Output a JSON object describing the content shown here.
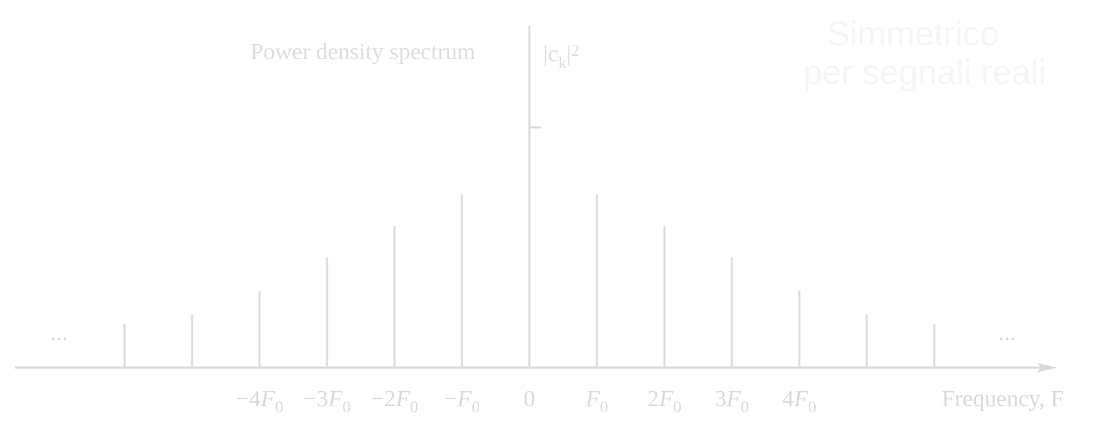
{
  "title": "Power density spectrum",
  "y_label": {
    "base": "|c",
    "sub": "k",
    "tail": "|",
    "sup": "2"
  },
  "x_label": "Frequency, F",
  "note": [
    "Simmetrico",
    "per segnali reali"
  ],
  "ellipsis": "...",
  "colors": {
    "axis": "#d5dadd",
    "stem": "#d8dcdf",
    "text": "#d6dadd",
    "note": "#f3f5f6"
  },
  "chart_data": {
    "type": "stem",
    "symmetric": true,
    "x_unit": "F0",
    "x": [
      -6,
      -5,
      -4,
      -3,
      -2,
      -1,
      0,
      1,
      2,
      3,
      4,
      5,
      6
    ],
    "values": [
      0.18,
      0.22,
      0.32,
      0.46,
      0.59,
      0.72,
      1.0,
      0.72,
      0.59,
      0.46,
      0.32,
      0.22,
      0.18
    ],
    "ticks": [
      {
        "x": -4,
        "coef": "−4",
        "sym": "F",
        "sub": "0"
      },
      {
        "x": -3,
        "coef": "−3",
        "sym": "F",
        "sub": "0"
      },
      {
        "x": -2,
        "coef": "−2",
        "sym": "F",
        "sub": "0"
      },
      {
        "x": -1,
        "coef": "−",
        "sym": "F",
        "sub": "0"
      },
      {
        "x": 0,
        "coef": "0",
        "sym": "",
        "sub": ""
      },
      {
        "x": 1,
        "coef": "",
        "sym": "F",
        "sub": "0"
      },
      {
        "x": 2,
        "coef": "2",
        "sym": "F",
        "sub": "0"
      },
      {
        "x": 3,
        "coef": "3",
        "sym": "F",
        "sub": "0"
      },
      {
        "x": 4,
        "coef": "4",
        "sym": "F",
        "sub": "0"
      }
    ],
    "grid": false
  }
}
